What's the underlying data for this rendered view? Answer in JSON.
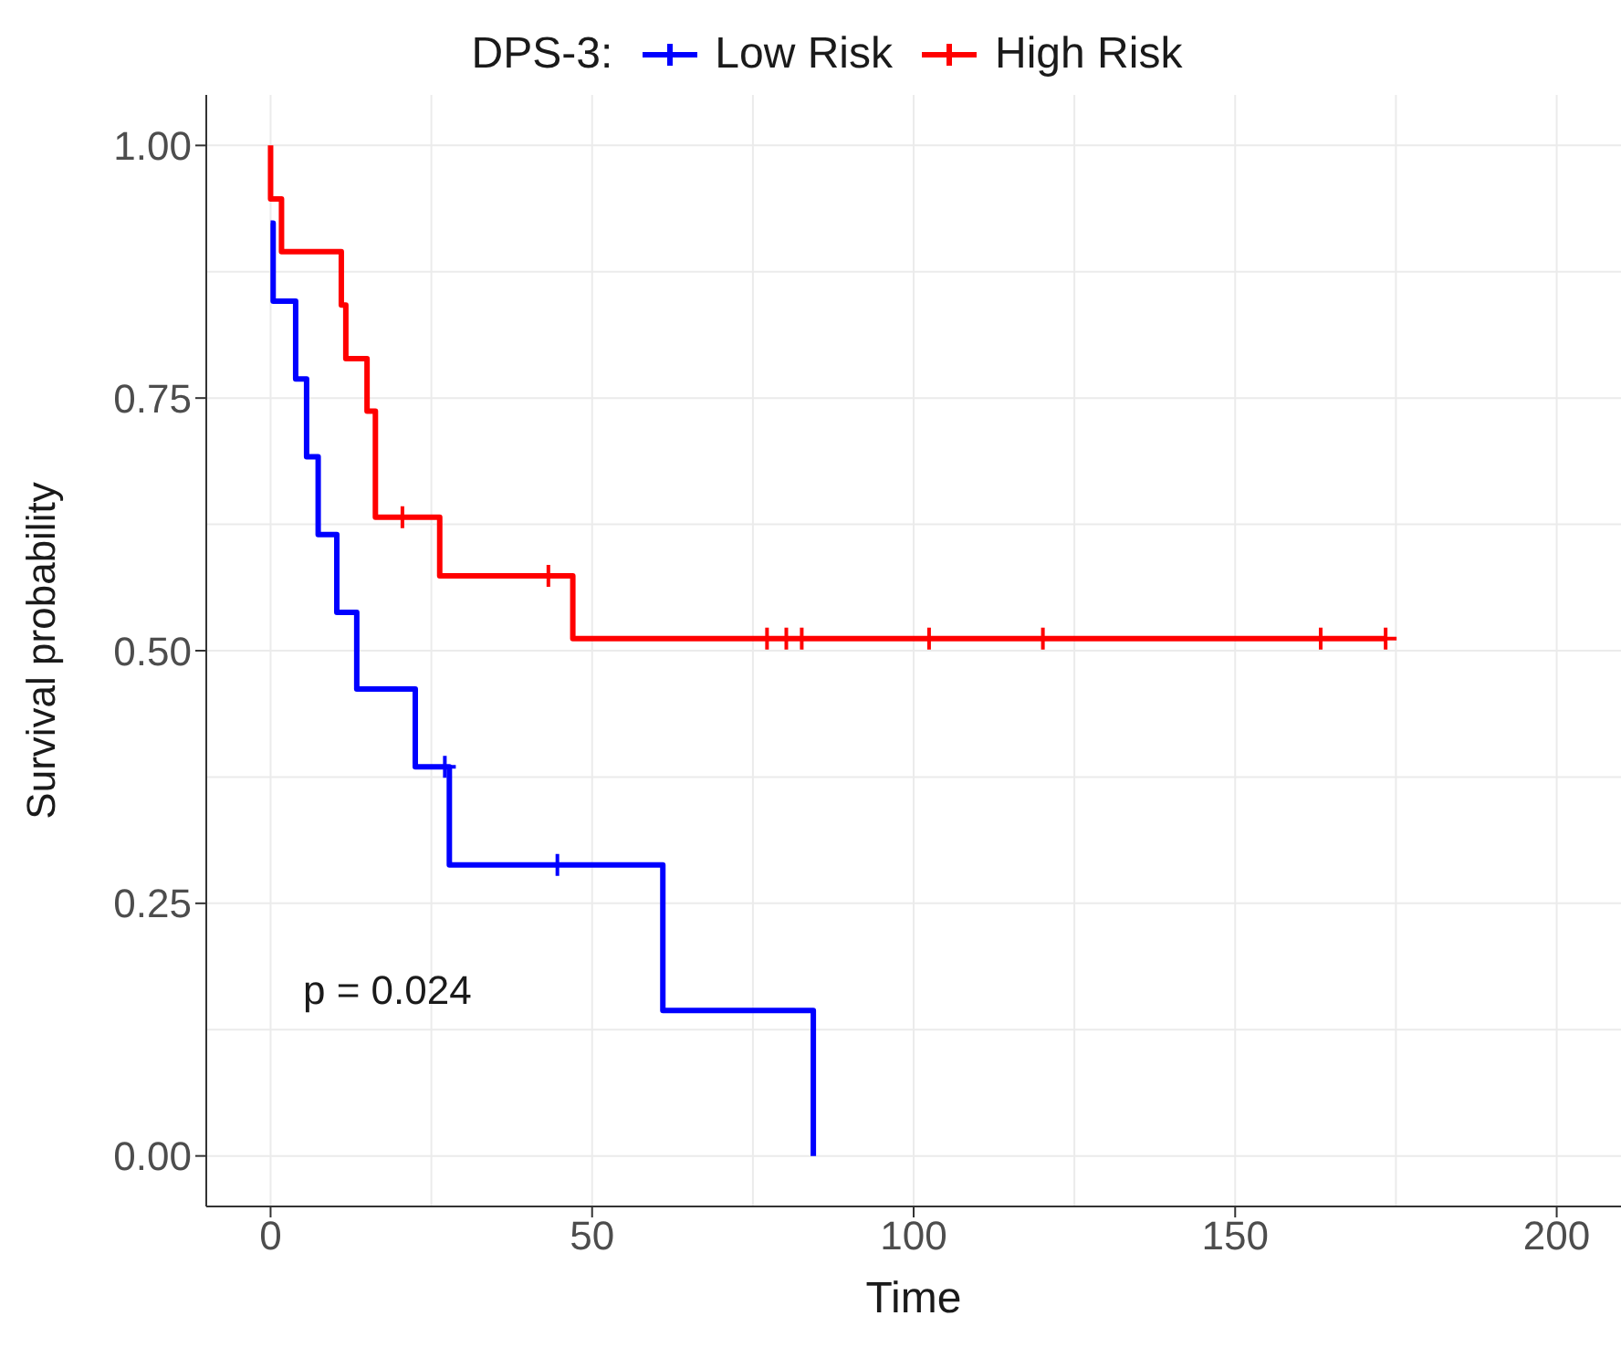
{
  "chart_data": {
    "type": "step",
    "xlabel": "Time",
    "ylabel": "Survival probability",
    "legend_title": "DPS-3:",
    "legend": "top",
    "grid": true,
    "marker": "none",
    "line_style": "solid",
    "xlim": [
      -10,
      210
    ],
    "xticks": [
      0,
      50,
      100,
      150,
      200
    ],
    "ylim": [
      -0.05,
      1.05
    ],
    "yticks": [
      {
        "value": 0,
        "label": "0.00"
      },
      {
        "value": 0.25,
        "label": "0.25"
      },
      {
        "value": 0.5,
        "label": "0.50"
      },
      {
        "value": 0.75,
        "label": "0.75"
      },
      {
        "value": 1,
        "label": "1.00"
      }
    ],
    "annotations": [
      "p = 0.024"
    ],
    "series": [
      {
        "name": "Low Risk",
        "color": "#0000ff",
        "x": [
          0,
          0.4,
          3.9,
          5.6,
          7.4,
          10.3,
          13.4,
          22.5,
          27.8,
          61,
          84.4
        ],
        "values": [
          0.923,
          0.846,
          0.769,
          0.692,
          0.615,
          0.538,
          0.462,
          0.385,
          0.288,
          0.144,
          0
        ]
      },
      {
        "name": "High Risk",
        "color": "#ff0000",
        "x": [
          0,
          0,
          1.7,
          11,
          11.7,
          15,
          16.3,
          26.3,
          47,
          173.4
        ],
        "values": [
          1,
          0.947,
          0.895,
          0.842,
          0.789,
          0.737,
          0.632,
          0.574,
          0.512,
          0.512
        ]
      },
      {
        "type": "scatter",
        "marker": "cross",
        "color": "#0000ff",
        "x": [
          27.1,
          44.6
        ],
        "values": [
          0.385,
          0.288
        ]
      },
      {
        "type": "scatter",
        "marker": "cross",
        "color": "#ff0000",
        "x": [
          20.5,
          43.2,
          77.2,
          80.2,
          82.6,
          102.4,
          120.1,
          163.3,
          173.4
        ],
        "values": [
          0.632,
          0.574,
          0.512,
          0.512,
          0.512,
          0.512,
          0.512,
          0.512,
          0.512
        ]
      }
    ]
  }
}
